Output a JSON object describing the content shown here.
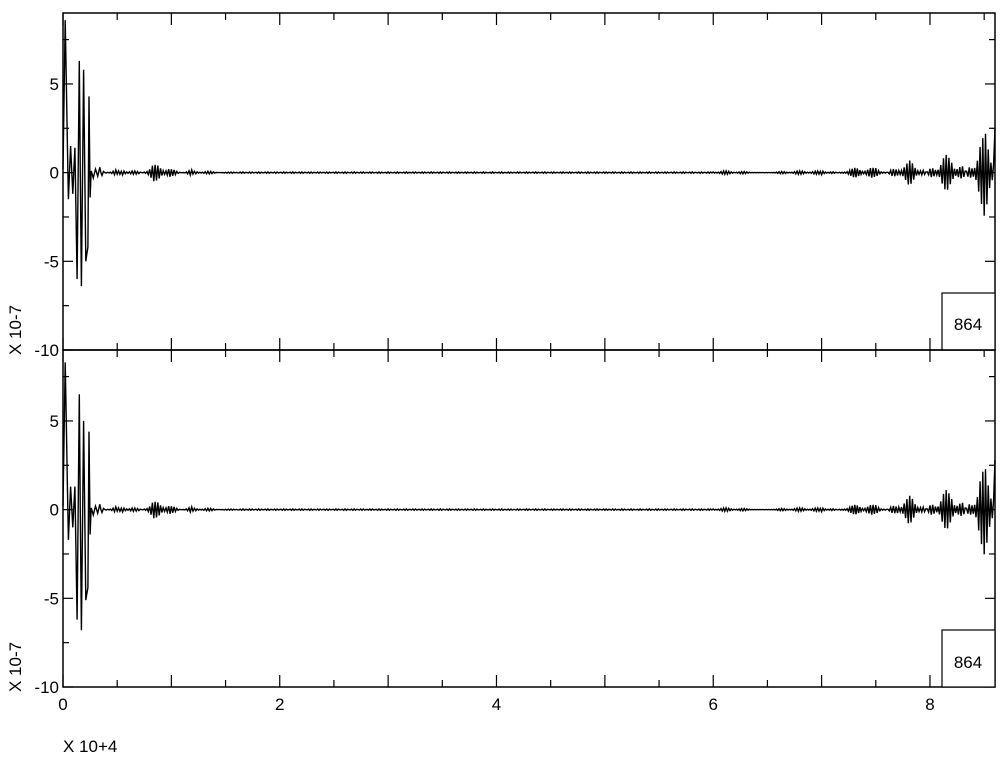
{
  "chart_data": [
    {
      "type": "line",
      "panel": "top",
      "ylim": [
        -10,
        9
      ],
      "xlim": [
        0,
        8.6
      ],
      "y_ticks": [
        -10,
        -5,
        0,
        5
      ],
      "y_tick_labels": [
        "-10",
        "-5",
        "0",
        "5"
      ],
      "y_multiplier": "X 10-7",
      "box_label": "864",
      "series": [
        {
          "color": "#000000",
          "x": [
            0.0,
            0.02,
            0.05,
            0.07,
            0.09,
            0.11,
            0.13,
            0.15,
            0.17,
            0.19,
            0.21,
            0.23,
            0.24,
            0.25,
            0.26,
            0.28,
            0.3,
            0.32,
            0.34,
            0.36,
            0.4,
            0.45,
            0.5,
            0.55,
            0.6,
            0.65,
            0.7,
            0.75,
            0.8,
            0.85,
            0.9,
            0.95,
            1.0,
            1.05,
            1.1,
            1.2,
            1.3,
            1.4,
            1.5,
            1.6,
            2.0,
            3.0,
            4.0,
            5.0,
            6.0,
            6.5,
            7.0,
            7.2,
            7.4,
            7.5,
            7.6,
            7.7,
            7.8,
            7.9,
            8.0,
            8.1,
            8.2,
            8.3,
            8.35,
            8.4,
            8.45,
            8.5,
            8.55,
            8.6
          ],
          "y": [
            0.2,
            8.6,
            -1.5,
            1.5,
            -1.2,
            1.4,
            -6.0,
            6.3,
            -6.4,
            5.8,
            -5.0,
            -4.2,
            4.3,
            -1.4,
            0.1,
            -0.3,
            0.2,
            -0.2,
            0.3,
            -0.3,
            0.2,
            -0.2,
            0.1,
            -0.1,
            0.2,
            -0.2,
            0.1,
            -0.3,
            0.6,
            -0.5,
            0.5,
            -0.4,
            0.3,
            -0.3,
            0.2,
            -0.1,
            0.1,
            -0.1,
            0.05,
            -0.05,
            0.0,
            0.0,
            0.0,
            0.0,
            0.0,
            0.1,
            -0.1,
            0.2,
            -0.3,
            0.3,
            -0.4,
            0.5,
            -0.6,
            0.7,
            -0.8,
            0.9,
            -1.0,
            1.2,
            -1.5,
            1.8,
            -1.9,
            2.0,
            -2.5,
            2.5
          ]
        }
      ]
    },
    {
      "type": "line",
      "panel": "bottom",
      "ylim": [
        -10,
        9
      ],
      "xlim": [
        0,
        8.6
      ],
      "x_ticks": [
        0,
        2,
        4,
        6,
        8
      ],
      "x_tick_labels": [
        "0",
        "2",
        "4",
        "6",
        "8"
      ],
      "y_ticks": [
        -10,
        -5,
        0,
        5
      ],
      "y_tick_labels": [
        "-10",
        "-5",
        "0",
        "5"
      ],
      "x_multiplier": "X 10+4",
      "y_multiplier": "X 10-7",
      "box_label": "864",
      "series": [
        {
          "color": "#000000",
          "x": [
            0.0,
            0.02,
            0.05,
            0.07,
            0.09,
            0.11,
            0.13,
            0.15,
            0.17,
            0.19,
            0.21,
            0.23,
            0.24,
            0.25,
            0.26,
            0.28,
            0.3,
            0.32,
            0.34,
            0.36,
            0.4,
            0.45,
            0.5,
            0.55,
            0.6,
            0.65,
            0.7,
            0.75,
            0.8,
            0.85,
            0.9,
            0.95,
            1.0,
            1.05,
            1.1,
            1.2,
            1.3,
            1.4,
            1.5,
            1.6,
            2.0,
            3.0,
            4.0,
            5.0,
            6.0,
            6.5,
            7.0,
            7.2,
            7.4,
            7.5,
            7.6,
            7.7,
            7.8,
            7.9,
            8.0,
            8.1,
            8.2,
            8.3,
            8.35,
            8.4,
            8.45,
            8.5,
            8.55,
            8.6
          ],
          "y": [
            0.2,
            8.3,
            -1.7,
            1.3,
            -1.0,
            1.3,
            -6.2,
            6.5,
            -6.8,
            5.0,
            -5.1,
            -4.4,
            4.4,
            -1.4,
            0.1,
            -0.3,
            0.2,
            -0.2,
            0.3,
            -0.3,
            0.2,
            -0.2,
            0.1,
            -0.1,
            0.2,
            -0.2,
            0.1,
            -0.3,
            0.6,
            -0.5,
            0.5,
            -0.4,
            0.3,
            -0.3,
            0.2,
            -0.1,
            0.1,
            -0.1,
            0.05,
            -0.05,
            0.0,
            0.0,
            0.0,
            0.0,
            0.0,
            0.1,
            -0.1,
            0.2,
            -0.3,
            0.3,
            -0.4,
            0.5,
            -0.7,
            0.8,
            -0.9,
            1.0,
            -1.1,
            1.3,
            -1.6,
            1.8,
            -2.0,
            2.2,
            -2.6,
            2.8
          ]
        }
      ]
    }
  ]
}
